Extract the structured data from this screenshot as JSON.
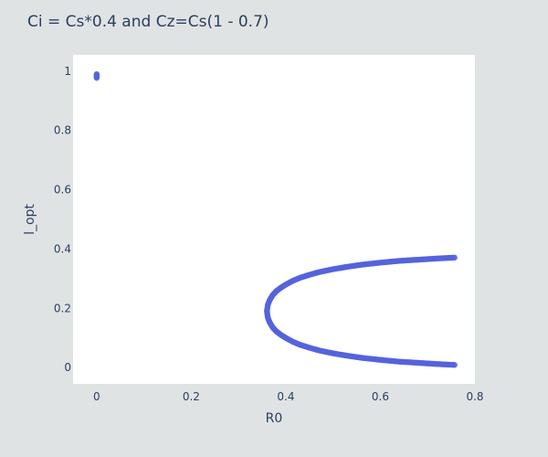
{
  "colors": {
    "paper": "#dfe3e4",
    "plot": "#ffffff",
    "marker": "#5563dd",
    "text": "#2a3f5f"
  },
  "chart_data": {
    "type": "scatter",
    "title": "Ci = Cs*0.4 and Cz=Cs(1 - 0.7)",
    "xlabel": "R0",
    "ylabel": "l_opt",
    "xlim": [
      -0.05,
      0.8
    ],
    "ylim": [
      -0.055,
      1.055
    ],
    "xticks": [
      0,
      0.2,
      0.4,
      0.6,
      0.8
    ],
    "xtick_labels": [
      "0",
      "0.2",
      "0.4",
      "0.6",
      "0.8"
    ],
    "yticks": [
      0,
      0.2,
      0.4,
      0.6,
      0.8,
      1
    ],
    "ytick_labels": [
      "0",
      "0.2",
      "0.4",
      "0.6",
      "0.8",
      "1"
    ],
    "grid": false,
    "series": [
      {
        "x": [
          0.0,
          0.0,
          0.0,
          0.0,
          0.0,
          0.36,
          0.362,
          0.366,
          0.372,
          0.38,
          0.39,
          0.4,
          0.415,
          0.43,
          0.45,
          0.47,
          0.5,
          0.53,
          0.56,
          0.6,
          0.64,
          0.68,
          0.72,
          0.757,
          0.362,
          0.366,
          0.372,
          0.38,
          0.39,
          0.4,
          0.415,
          0.43,
          0.45,
          0.47,
          0.5,
          0.53,
          0.56,
          0.6,
          0.64,
          0.68,
          0.72,
          0.757
        ],
        "y": [
          0.98,
          0.983,
          0.987,
          0.99,
          0.977,
          0.19,
          0.212,
          0.228,
          0.244,
          0.258,
          0.27,
          0.28,
          0.293,
          0.303,
          0.313,
          0.322,
          0.332,
          0.34,
          0.347,
          0.354,
          0.36,
          0.364,
          0.368,
          0.371,
          0.168,
          0.152,
          0.136,
          0.122,
          0.11,
          0.1,
          0.087,
          0.077,
          0.067,
          0.058,
          0.048,
          0.04,
          0.033,
          0.026,
          0.02,
          0.016,
          0.012,
          0.009
        ]
      }
    ]
  }
}
